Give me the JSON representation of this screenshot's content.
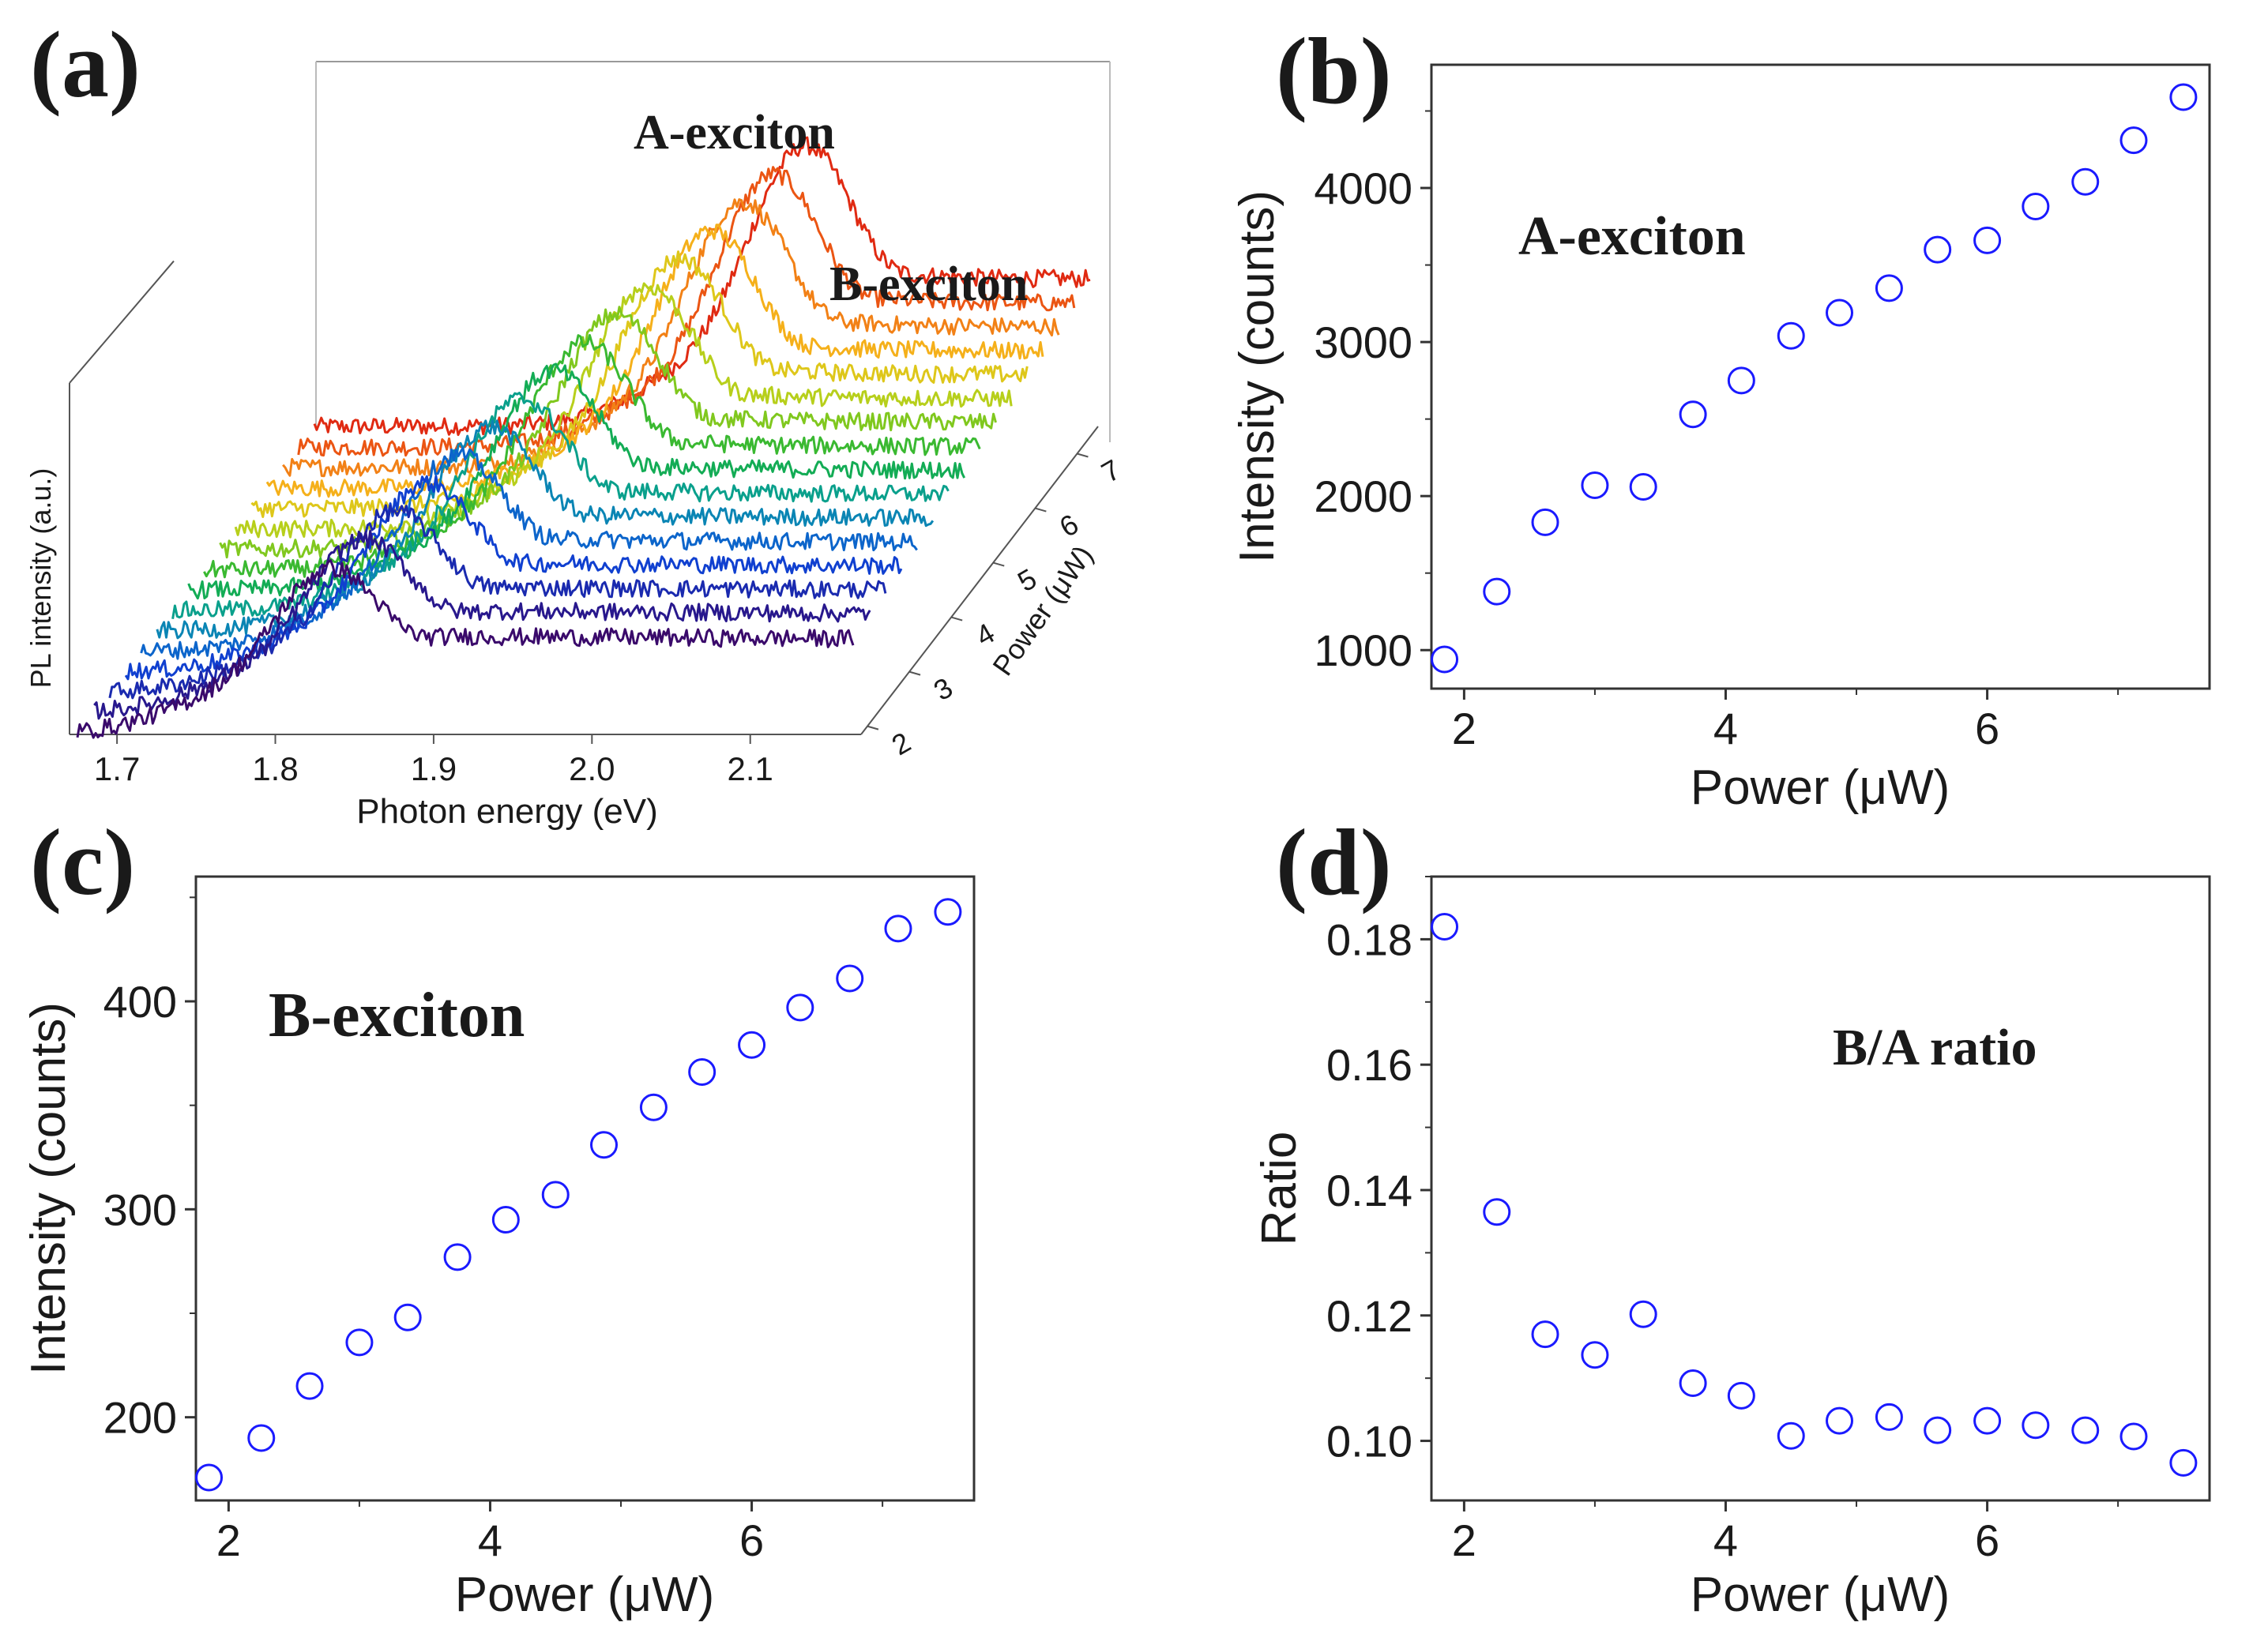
{
  "colors": {
    "marker": "#1a1aff",
    "axis": "#333333",
    "text": "#1a1a1a",
    "spectrum_palette": [
      "#3a0a6b",
      "#1f1f9e",
      "#1040d0",
      "#0a78c8",
      "#0aa08c",
      "#17b23a",
      "#80c81e",
      "#d2d21a",
      "#f5b01a",
      "#f06a14",
      "#e02a12"
    ]
  },
  "chart_data": [
    {
      "panel": "(a)",
      "type": "line",
      "title": "",
      "annotations": [
        "A-exciton",
        "B-exciton"
      ],
      "xlabel": "Photon energy (eV)",
      "ylabel": "PL intensity (a.u.)",
      "zlabel": "Power (μW)",
      "xlim": [
        1.67,
        2.17
      ],
      "x_ticks": [
        "1.7",
        "1.8",
        "1.9",
        "2.0",
        "2.1"
      ],
      "z_ticks": [
        "2",
        "3",
        "4",
        "5",
        "6",
        "7"
      ],
      "z_range": [
        1.85,
        7.5
      ],
      "series_powers": [
        1.85,
        2.25,
        2.62,
        3.0,
        3.37,
        3.75,
        4.12,
        4.5,
        4.87,
        5.25,
        5.62,
        6.0,
        6.37,
        6.75,
        7.12,
        7.5
      ],
      "peak_energy_eV": {
        "start": 1.835,
        "end": 1.985
      },
      "peak_width_eV": 0.035
    },
    {
      "panel": "(b)",
      "type": "scatter",
      "title": "A-exciton",
      "xlabel": "Power (μW)",
      "ylabel": "Intensity (counts)",
      "xlim": [
        1.75,
        7.7
      ],
      "ylim": [
        750,
        4800
      ],
      "x_ticks": [
        "2",
        "4",
        "6"
      ],
      "y_ticks": [
        "1000",
        "2000",
        "3000",
        "4000"
      ],
      "x": [
        1.85,
        2.25,
        2.62,
        3.0,
        3.37,
        3.75,
        4.12,
        4.5,
        4.87,
        5.25,
        5.62,
        6.0,
        6.37,
        6.75,
        7.12,
        7.5
      ],
      "y": [
        940,
        1380,
        1830,
        2070,
        2060,
        2530,
        2750,
        3040,
        3190,
        3350,
        3600,
        3660,
        3880,
        4040,
        4310,
        4590
      ]
    },
    {
      "panel": "(c)",
      "type": "scatter",
      "title": "B-exciton",
      "xlabel": "Power (μW)",
      "ylabel": "Intensity (counts)",
      "xlim": [
        1.75,
        7.7
      ],
      "ylim": [
        160,
        460
      ],
      "x_ticks": [
        "2",
        "4",
        "6"
      ],
      "y_ticks": [
        "200",
        "300",
        "400"
      ],
      "x": [
        1.85,
        2.25,
        2.62,
        3.0,
        3.37,
        3.75,
        4.12,
        4.5,
        4.87,
        5.25,
        5.62,
        6.0,
        6.37,
        6.75,
        7.12,
        7.5
      ],
      "y": [
        171,
        190,
        215,
        236,
        248,
        277,
        295,
        307,
        331,
        349,
        366,
        379,
        397,
        411,
        435,
        443
      ]
    },
    {
      "panel": "(d)",
      "type": "scatter",
      "title": "B/A ratio",
      "xlabel": "Power (μW)",
      "ylabel": "Ratio",
      "xlim": [
        1.75,
        7.7
      ],
      "ylim": [
        0.0905,
        0.19
      ],
      "x_ticks": [
        "2",
        "4",
        "6"
      ],
      "y_ticks": [
        "0.10",
        "0.12",
        "0.14",
        "0.16",
        "0.18"
      ],
      "x": [
        1.85,
        2.25,
        2.62,
        3.0,
        3.37,
        3.75,
        4.12,
        4.5,
        4.87,
        5.25,
        5.62,
        6.0,
        6.37,
        6.75,
        7.12,
        7.5
      ],
      "y": [
        0.182,
        0.1365,
        0.117,
        0.1137,
        0.1202,
        0.1092,
        0.1072,
        0.1008,
        0.1032,
        0.1038,
        0.1017,
        0.1032,
        0.1025,
        0.1017,
        0.1007,
        0.0965
      ]
    }
  ]
}
